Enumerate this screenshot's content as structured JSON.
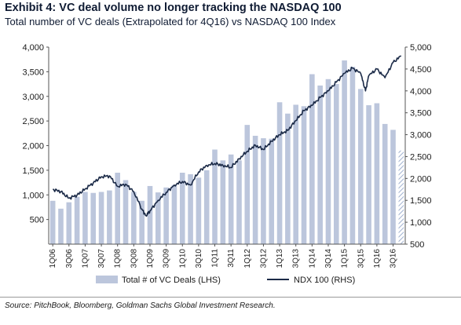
{
  "header": {
    "title": "Exhibit 4: VC deal volume no longer tracking the NASDAQ 100",
    "subtitle": "Total number of VC deals (Extrapolated for 4Q16) vs NASDAQ 100 Index"
  },
  "footer": {
    "source": "Source: PitchBook, Bloomberg, Goldman Sachs Global Investment Research."
  },
  "colors": {
    "bars": "#bcc6dc",
    "extrapolated_bar": "hatched",
    "line": "#1b2a47",
    "text": "#0f1b33"
  },
  "chart_data": {
    "type": "bar",
    "title": "Exhibit 4: VC deal volume no longer tracking the NASDAQ 100",
    "subtitle": "Total number of VC deals (Extrapolated for 4Q16) vs NASDAQ 100 Index",
    "legend_placement": "bottom",
    "grid": false,
    "categories": [
      "1Q06",
      "2Q06",
      "3Q06",
      "4Q06",
      "1Q07",
      "2Q07",
      "3Q07",
      "4Q07",
      "1Q08",
      "2Q08",
      "3Q08",
      "4Q08",
      "1Q09",
      "2Q09",
      "3Q09",
      "4Q09",
      "1Q10",
      "2Q10",
      "3Q10",
      "4Q10",
      "1Q11",
      "2Q11",
      "3Q11",
      "4Q11",
      "1Q12",
      "2Q12",
      "3Q12",
      "4Q12",
      "1Q13",
      "2Q13",
      "3Q13",
      "4Q13",
      "1Q14",
      "2Q14",
      "3Q14",
      "4Q14",
      "1Q15",
      "2Q15",
      "3Q15",
      "4Q15",
      "1Q16",
      "2Q16",
      "3Q16",
      "4Q16"
    ],
    "x_tick_labels": [
      "1Q06",
      "3Q06",
      "1Q07",
      "3Q07",
      "1Q08",
      "3Q08",
      "1Q09",
      "3Q09",
      "1Q10",
      "3Q10",
      "1Q11",
      "3Q11",
      "1Q12",
      "3Q12",
      "1Q13",
      "3Q13",
      "1Q14",
      "3Q14",
      "1Q15",
      "3Q15",
      "1Q16",
      "3Q16"
    ],
    "series": [
      {
        "name": "Total # of VC Deals (LHS)",
        "axis": "left",
        "kind": "bar",
        "values": [
          880,
          720,
          850,
          960,
          1060,
          1040,
          1060,
          1090,
          1450,
          1300,
          1060,
          880,
          1180,
          1050,
          1150,
          1200,
          1450,
          1420,
          1350,
          1500,
          1920,
          1700,
          1820,
          1700,
          2420,
          2200,
          2150,
          2140,
          2880,
          2650,
          2830,
          2800,
          3450,
          3220,
          3350,
          3250,
          3730,
          3600,
          3150,
          2820,
          2860,
          2440,
          2320,
          1900
        ],
        "extrapolated_last": true
      },
      {
        "name": "NDX 100 (RHS)",
        "axis": "right",
        "kind": "line",
        "x": [
          0,
          1,
          2,
          3,
          4,
          5,
          6,
          7,
          8,
          9,
          10,
          11,
          11.5,
          12,
          13,
          14,
          15,
          16,
          17,
          18,
          19,
          20,
          21,
          22,
          23,
          24,
          25,
          26,
          27,
          28,
          29,
          30,
          31,
          32,
          33,
          34,
          35,
          36,
          37,
          38,
          38.6,
          39,
          40,
          41,
          42,
          43
        ],
        "values": [
          1750,
          1700,
          1550,
          1620,
          1760,
          1900,
          2040,
          2060,
          1820,
          1870,
          1700,
          1300,
          1150,
          1260,
          1500,
          1680,
          1850,
          1930,
          1850,
          2150,
          2300,
          2340,
          2300,
          2250,
          2450,
          2620,
          2760,
          2660,
          2850,
          3000,
          3100,
          3320,
          3550,
          3670,
          3850,
          4000,
          4200,
          4400,
          4520,
          4400,
          4000,
          4350,
          4500,
          4300,
          4650,
          4800
        ]
      }
    ],
    "y_left": {
      "lim": [
        0,
        4000
      ],
      "ticks": [
        "500",
        "1,000",
        "1,500",
        "2,000",
        "2,500",
        "3,000",
        "3,500",
        "4,000"
      ],
      "tick_values": [
        500,
        1000,
        1500,
        2000,
        2500,
        3000,
        3500,
        4000
      ]
    },
    "y_right": {
      "lim": [
        500,
        5000
      ],
      "ticks": [
        "500",
        "1,000",
        "1,500",
        "2,000",
        "2,500",
        "3,000",
        "3,500",
        "4,000",
        "4,500",
        "5,000"
      ],
      "tick_values": [
        500,
        1000,
        1500,
        2000,
        2500,
        3000,
        3500,
        4000,
        4500,
        5000
      ]
    }
  }
}
